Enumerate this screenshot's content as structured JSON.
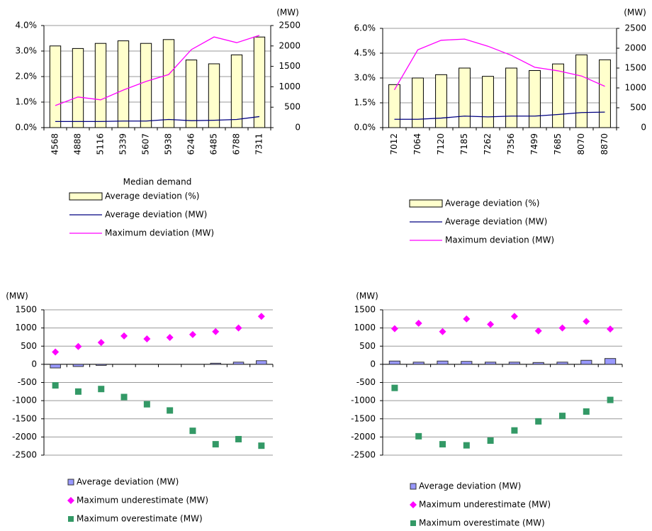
{
  "chart_data": [
    {
      "type": "bar",
      "x_label": "Median demand",
      "y2_label": "(MW)",
      "categories": [
        "4568",
        "4888",
        "5116",
        "5339",
        "5607",
        "5938",
        "6246",
        "6485",
        "6788",
        "7311"
      ],
      "ylim": [
        0,
        4
      ],
      "yticks": [
        {
          "value": 0,
          "label": "0.0%"
        },
        {
          "value": 1,
          "label": "1.0%"
        },
        {
          "value": 2,
          "label": "2.0%"
        },
        {
          "value": 3,
          "label": "3.0%"
        },
        {
          "value": 4,
          "label": "4.0%"
        }
      ],
      "y2lim": [
        0,
        2500
      ],
      "y2ticks": [
        0,
        500,
        1000,
        1500,
        2000,
        2500
      ],
      "grid": true,
      "series": [
        {
          "name": "Average deviation (%)",
          "kind": "bar",
          "color": "#ffffcc",
          "values": [
            3.2,
            3.1,
            3.3,
            3.4,
            3.3,
            3.45,
            2.65,
            2.5,
            2.85,
            3.55
          ]
        },
        {
          "name": "Average deviation (MW)",
          "kind": "line",
          "axis": "y2",
          "color": "#000080",
          "values": [
            150,
            150,
            150,
            160,
            160,
            200,
            170,
            180,
            200,
            270
          ]
        },
        {
          "name": "Maximum deviation (MW)",
          "kind": "line",
          "axis": "y2",
          "color": "#ff00ff",
          "values": [
            540,
            750,
            680,
            920,
            1130,
            1300,
            1910,
            2220,
            2080,
            2260
          ]
        }
      ]
    },
    {
      "type": "bar",
      "y2_label": "(MW)",
      "categories": [
        "7012",
        "7064",
        "7120",
        "7185",
        "7262",
        "7356",
        "7499",
        "7685",
        "8070",
        "8870"
      ],
      "ylim": [
        0,
        6
      ],
      "yticks": [
        {
          "value": 0,
          "label": "0.0%"
        },
        {
          "value": 1.5,
          "label": "1.5%"
        },
        {
          "value": 3,
          "label": "3.0%"
        },
        {
          "value": 4.5,
          "label": "4.5%"
        },
        {
          "value": 6,
          "label": "6.0%"
        }
      ],
      "y2lim": [
        0,
        2500
      ],
      "y2ticks": [
        0,
        500,
        1000,
        1500,
        2000,
        2500
      ],
      "grid": true,
      "series": [
        {
          "name": "Average deviation (%)",
          "kind": "bar",
          "color": "#ffffcc",
          "values": [
            2.6,
            3.0,
            3.2,
            3.6,
            3.1,
            3.6,
            3.45,
            3.85,
            4.4,
            4.1
          ]
        },
        {
          "name": "Average deviation (MW)",
          "kind": "line",
          "axis": "y2",
          "color": "#000080",
          "values": [
            210,
            210,
            240,
            290,
            270,
            290,
            290,
            330,
            380,
            390
          ]
        },
        {
          "name": "Maximum deviation (MW)",
          "kind": "line",
          "axis": "y2",
          "color": "#ff00ff",
          "values": [
            950,
            1960,
            2200,
            2230,
            2050,
            1820,
            1520,
            1430,
            1300,
            1040
          ]
        }
      ]
    },
    {
      "type": "bar",
      "y_label": "(MW)",
      "categories": [
        null,
        null,
        null,
        null,
        null,
        null,
        null,
        null,
        null,
        null
      ],
      "ylim": [
        -2500,
        1500
      ],
      "yticks": [
        -2500,
        -2000,
        -1500,
        -1000,
        -500,
        0,
        500,
        1000,
        1500
      ],
      "grid": true,
      "series": [
        {
          "name": "Average deviation (MW)",
          "kind": "bar",
          "color": "#9999ff",
          "values": [
            -100,
            -60,
            -30,
            0,
            0,
            0,
            0,
            30,
            60,
            100
          ]
        },
        {
          "name": "Maximum underestimate (MW)",
          "kind": "marker",
          "marker": "diamond",
          "color": "#ff00ff",
          "values": [
            340,
            490,
            600,
            780,
            700,
            740,
            820,
            900,
            1000,
            1320
          ]
        },
        {
          "name": "Maximum overestimate (MW)",
          "kind": "marker",
          "marker": "square",
          "color": "#339966",
          "values": [
            -580,
            -750,
            -680,
            -900,
            -1100,
            -1270,
            -1830,
            -2200,
            -2060,
            -2240
          ]
        }
      ]
    },
    {
      "type": "bar",
      "y_label": "(MW)",
      "categories": [
        null,
        null,
        null,
        null,
        null,
        null,
        null,
        null,
        null,
        null
      ],
      "ylim": [
        -2500,
        1500
      ],
      "yticks": [
        -2500,
        -2000,
        -1500,
        -1000,
        -500,
        0,
        500,
        1000,
        1500
      ],
      "grid": true,
      "series": [
        {
          "name": "Average deviation (MW)",
          "kind": "bar",
          "color": "#9999ff",
          "values": [
            90,
            60,
            90,
            80,
            60,
            60,
            50,
            60,
            110,
            160
          ]
        },
        {
          "name": "Maximum underestimate (MW)",
          "kind": "marker",
          "marker": "diamond",
          "color": "#ff00ff",
          "values": [
            980,
            1130,
            900,
            1250,
            1100,
            1320,
            920,
            1000,
            1180,
            970
          ]
        },
        {
          "name": "Maximum overestimate (MW)",
          "kind": "marker",
          "marker": "square",
          "color": "#339966",
          "values": [
            -650,
            -1980,
            -2200,
            -2230,
            -2100,
            -1820,
            -1570,
            -1420,
            -1300,
            -980
          ]
        }
      ]
    }
  ]
}
